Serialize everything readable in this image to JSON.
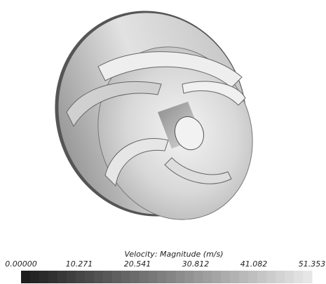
{
  "colorbar": {
    "title": "Velocity: Magnitude (m/s)",
    "ticks": [
      "0.00000",
      "10.271",
      "20.541",
      "30.812",
      "41.082",
      "51.353"
    ]
  }
}
